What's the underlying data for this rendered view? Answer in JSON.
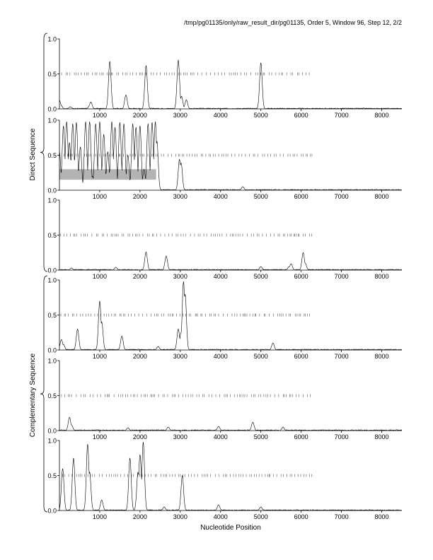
{
  "header": {
    "title": "/tmp/pg01135/only/raw_result_dir/pg01135, Order 5, Window 96, Step 12, 2/2"
  },
  "colors": {
    "line": "#000000",
    "tick": "#555555",
    "band": "#b3b3b3",
    "background": "#ffffff"
  },
  "groups": [
    {
      "label": "Direct Sequence"
    },
    {
      "label": "Complementary Sequence"
    }
  ],
  "chart_data": {
    "type": "line",
    "xlabel": "Nucleotide Position",
    "xlim": [
      0,
      8500
    ],
    "ylim": [
      0,
      1.0
    ],
    "xticks": [
      1000,
      2000,
      3000,
      4000,
      5000,
      6000,
      7000,
      8000
    ],
    "yticks": [
      0.0,
      0.5,
      1.0
    ],
    "yticklabels": [
      "0.0",
      "0.5",
      "1.0"
    ],
    "tick_row_range": [
      0,
      6300
    ],
    "panels": [
      {
        "group": 0,
        "peaks": [
          [
            0,
            0.12
          ],
          [
            40,
            0.05
          ],
          [
            270,
            0.03
          ],
          [
            750,
            0.05
          ],
          [
            780,
            0.1
          ],
          [
            1250,
            0.68
          ],
          [
            1650,
            0.2
          ],
          [
            2150,
            0.62
          ],
          [
            2950,
            0.7
          ],
          [
            3030,
            0.18
          ],
          [
            3150,
            0.13
          ],
          [
            5000,
            0.66
          ]
        ]
      },
      {
        "group": 0,
        "peaks": [
          [
            0,
            0.55
          ],
          [
            100,
            0.92
          ],
          [
            180,
            0.98
          ],
          [
            250,
            0.68
          ],
          [
            330,
            0.95
          ],
          [
            420,
            0.97
          ],
          [
            520,
            0.62
          ],
          [
            650,
            0.98
          ],
          [
            750,
            0.98
          ],
          [
            820,
            0.2
          ],
          [
            900,
            0.95
          ],
          [
            1000,
            0.98
          ],
          [
            1100,
            0.8
          ],
          [
            1200,
            0.55
          ],
          [
            1300,
            0.98
          ],
          [
            1380,
            0.9
          ],
          [
            1500,
            0.97
          ],
          [
            1600,
            0.95
          ],
          [
            1700,
            0.5
          ],
          [
            1820,
            0.95
          ],
          [
            1900,
            0.9
          ],
          [
            2000,
            0.92
          ],
          [
            2100,
            0.3
          ],
          [
            2200,
            0.95
          ],
          [
            2300,
            0.97
          ],
          [
            2380,
            0.98
          ],
          [
            2420,
            0.7
          ],
          [
            2980,
            0.44
          ],
          [
            3020,
            0.39
          ],
          [
            4550,
            0.05
          ]
        ],
        "band": {
          "x": [
            0,
            2400
          ],
          "y": [
            0.15,
            0.3
          ]
        }
      },
      {
        "group": 0,
        "peaks": [
          [
            300,
            0.03
          ],
          [
            1400,
            0.04
          ],
          [
            2150,
            0.26
          ],
          [
            2650,
            0.2
          ],
          [
            5000,
            0.05
          ],
          [
            5700,
            0.05
          ],
          [
            5750,
            0.09
          ],
          [
            6050,
            0.25
          ],
          [
            6100,
            0.1
          ]
        ]
      },
      {
        "group": 1,
        "peaks": [
          [
            0,
            0.05
          ],
          [
            50,
            0.15
          ],
          [
            100,
            0.08
          ],
          [
            450,
            0.3
          ],
          [
            1000,
            0.7
          ],
          [
            1050,
            0.4
          ],
          [
            1550,
            0.2
          ],
          [
            2450,
            0.05
          ],
          [
            2950,
            0.3
          ],
          [
            3020,
            0.25
          ],
          [
            3080,
            0.98
          ],
          [
            3120,
            0.8
          ],
          [
            5300,
            0.1
          ]
        ]
      },
      {
        "group": 1,
        "peaks": [
          [
            250,
            0.19
          ],
          [
            300,
            0.08
          ],
          [
            1700,
            0.04
          ],
          [
            2700,
            0.05
          ],
          [
            3950,
            0.06
          ],
          [
            4800,
            0.12
          ],
          [
            5550,
            0.05
          ]
        ]
      },
      {
        "group": 1,
        "peaks": [
          [
            80,
            0.6
          ],
          [
            350,
            0.75
          ],
          [
            700,
            0.95
          ],
          [
            750,
            0.55
          ],
          [
            1050,
            0.15
          ],
          [
            1750,
            0.75
          ],
          [
            1950,
            0.55
          ],
          [
            2000,
            0.8
          ],
          [
            2080,
            0.98
          ],
          [
            2600,
            0.05
          ],
          [
            3050,
            0.5
          ],
          [
            3950,
            0.08
          ],
          [
            5000,
            0.05
          ]
        ]
      }
    ]
  }
}
